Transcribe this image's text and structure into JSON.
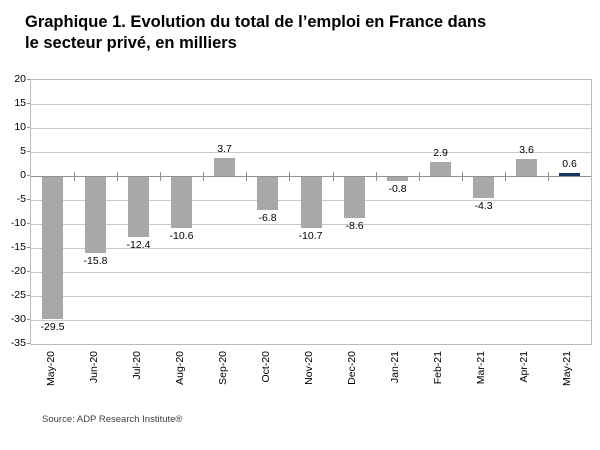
{
  "title": {
    "line1": "Graphique 1. Evolution du total de l’emploi en France dans",
    "line2": "le secteur privé, en milliers"
  },
  "source": "Source: ADP Research Institute®",
  "colors": {
    "bar": "#a8a8a8",
    "highlight_bar": "#17365d",
    "gridline": "#c9c9c9",
    "axis_line": "#909090",
    "plot_border": "#bababa",
    "label_text": "#000000"
  },
  "chart_data": {
    "type": "bar",
    "title": "Graphique 1. Evolution du total de l’emploi en France dans le secteur privé, en milliers",
    "categories": [
      "May-20",
      "Jun-20",
      "Jul-20",
      "Aug-20",
      "Sep-20",
      "Oct-20",
      "Nov-20",
      "Dec-20",
      "Jan-21",
      "Feb-21",
      "Mar-21",
      "Apr-21",
      "May-21"
    ],
    "values": [
      -29.5,
      -15.8,
      -12.4,
      -10.6,
      3.7,
      -6.8,
      -10.7,
      -8.6,
      -0.8,
      2.9,
      -4.3,
      3.6,
      0.6
    ],
    "data_labels": [
      "-29.5",
      "-15.8",
      "-12.4",
      "-10.6",
      "3.7",
      "-6.8",
      "-10.7",
      "-8.6",
      "-0.8",
      "2.9",
      "-4.3",
      "3.6",
      "0.6"
    ],
    "xlabel": "",
    "ylabel": "",
    "ylim": [
      -35,
      20
    ],
    "ytick_step": 5,
    "ytick_labels": [
      "20",
      "15",
      "10",
      "5",
      "0",
      "-5",
      "-10",
      "-15",
      "-20",
      "-25",
      "-30",
      "-35"
    ],
    "grid": true,
    "legend_position": "none",
    "highlight_index": 12,
    "bar_orientation": "vertical"
  }
}
